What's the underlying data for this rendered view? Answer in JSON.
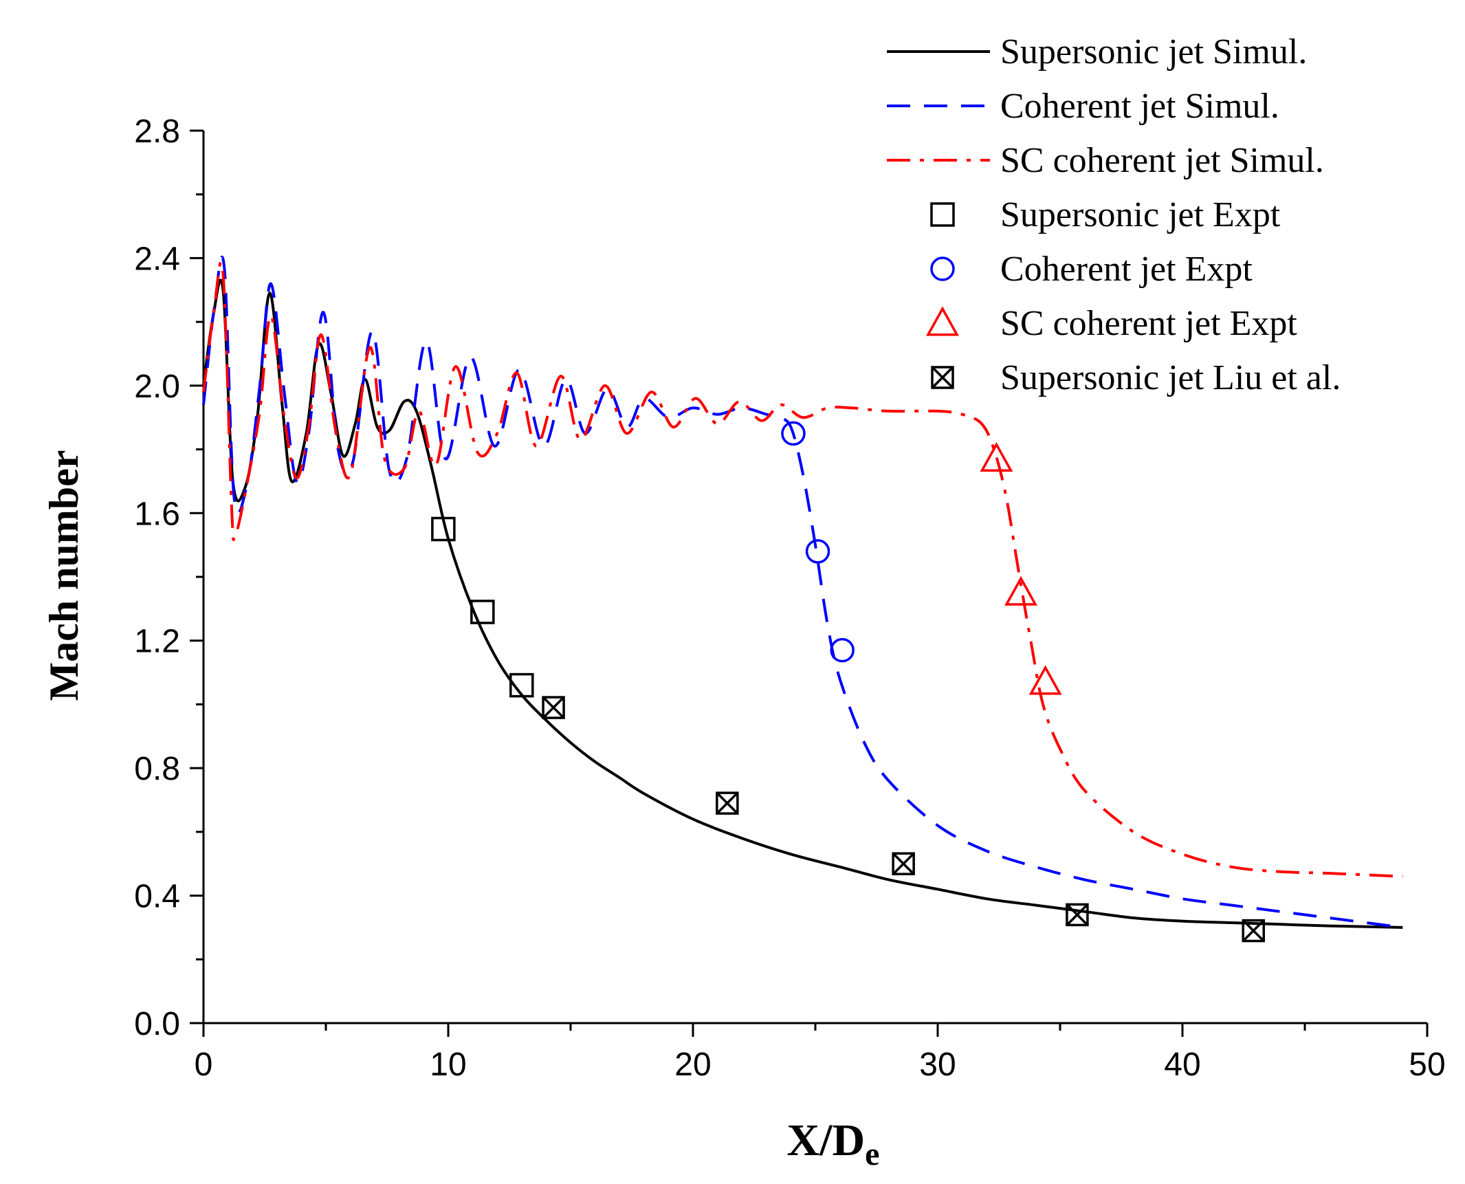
{
  "chart_data": {
    "type": "line",
    "title": "",
    "xlabel": "X/D",
    "xlabel_subscript": "e",
    "ylabel": "Mach number",
    "xlim": [
      0,
      50
    ],
    "ylim": [
      0,
      2.8
    ],
    "x_ticks": [
      0,
      10,
      20,
      30,
      40,
      50
    ],
    "y_ticks": [
      0.0,
      0.4,
      0.8,
      1.2,
      1.6,
      2.0,
      2.4,
      2.8
    ],
    "x_tick_labels": [
      "0",
      "10",
      "20",
      "30",
      "40",
      "50"
    ],
    "y_tick_labels": [
      "0.0",
      "0.4",
      "0.8",
      "1.2",
      "1.6",
      "2.0",
      "2.4",
      "2.8"
    ],
    "grid": false,
    "legend_position": "top-right",
    "series": [
      {
        "name": "Supersonic jet  Simul.",
        "style": "solid",
        "color": "#000000",
        "x": [
          0,
          0.4,
          0.8,
          1.2,
          1.7,
          2.2,
          2.7,
          3.2,
          3.6,
          4.2,
          4.7,
          5.2,
          5.7,
          6.2,
          6.6,
          7.1,
          7.6,
          8.2,
          8.7,
          9.3,
          10,
          11,
          12,
          13,
          14,
          15,
          16,
          17,
          18,
          20,
          22,
          24,
          26,
          28,
          30,
          32,
          34,
          36,
          38,
          40,
          42,
          44,
          46,
          49
        ],
        "y": [
          2.0,
          2.22,
          2.3,
          1.7,
          1.68,
          1.9,
          2.29,
          1.95,
          1.7,
          1.85,
          2.13,
          1.98,
          1.78,
          1.88,
          2.02,
          1.87,
          1.86,
          1.95,
          1.92,
          1.75,
          1.52,
          1.3,
          1.14,
          1.03,
          0.95,
          0.88,
          0.82,
          0.77,
          0.72,
          0.64,
          0.58,
          0.53,
          0.49,
          0.45,
          0.42,
          0.39,
          0.37,
          0.35,
          0.33,
          0.32,
          0.315,
          0.31,
          0.305,
          0.3
        ]
      },
      {
        "name": "Coherent jet  Simul.",
        "style": "dashed",
        "color": "#0000ff",
        "x": [
          0,
          0.45,
          0.85,
          1.25,
          1.8,
          2.3,
          2.75,
          3.3,
          3.8,
          4.3,
          4.9,
          5.5,
          6.1,
          6.9,
          7.6,
          8.3,
          9.1,
          9.9,
          10.9,
          11.9,
          12.9,
          13.9,
          14.8,
          15.6,
          16.5,
          17.3,
          18.0,
          19.0,
          20.0,
          21.0,
          22.0,
          23.0,
          23.5,
          24.0,
          24.5,
          25.0,
          25.5,
          26.0,
          27.0,
          28.0,
          30.0,
          32.0,
          34.0,
          36.0,
          38.0,
          40.0,
          42.0,
          44.0,
          46.0,
          49.0
        ],
        "y": [
          1.94,
          2.25,
          2.37,
          1.65,
          1.7,
          2.0,
          2.32,
          1.98,
          1.7,
          1.85,
          2.23,
          1.8,
          1.76,
          2.17,
          1.73,
          1.77,
          2.14,
          1.77,
          2.09,
          1.81,
          2.05,
          1.81,
          2.02,
          1.85,
          1.99,
          1.87,
          1.96,
          1.9,
          1.93,
          1.91,
          1.93,
          1.91,
          1.9,
          1.87,
          1.72,
          1.5,
          1.25,
          1.08,
          0.88,
          0.76,
          0.62,
          0.54,
          0.49,
          0.45,
          0.42,
          0.39,
          0.37,
          0.35,
          0.33,
          0.3
        ]
      },
      {
        "name": "SC coherent jet  Simul.",
        "style": "dash-dot",
        "color": "#ff0000",
        "x": [
          0,
          0.45,
          0.8,
          1.15,
          1.3,
          1.8,
          2.3,
          2.75,
          3.3,
          3.8,
          4.3,
          4.8,
          5.4,
          6.0,
          6.8,
          7.4,
          8.2,
          8.8,
          9.5,
          10.3,
          11.2,
          12.0,
          12.8,
          13.6,
          14.6,
          15.4,
          16.4,
          17.3,
          18.3,
          19.2,
          20.1,
          21.0,
          21.9,
          22.8,
          23.6,
          24.5,
          25.5,
          26.5,
          28.0,
          30.0,
          31.0,
          31.8,
          32.3,
          32.8,
          33.3,
          33.8,
          34.3,
          35.0,
          36.0,
          38.0,
          40.0,
          42.0,
          44.0,
          46.0,
          49.0
        ],
        "y": [
          1.98,
          2.25,
          2.35,
          1.62,
          1.53,
          1.7,
          1.92,
          2.22,
          1.9,
          1.71,
          1.87,
          2.16,
          1.86,
          1.72,
          2.12,
          1.77,
          1.74,
          1.92,
          1.75,
          2.06,
          1.79,
          1.85,
          2.04,
          1.81,
          2.03,
          1.83,
          2.0,
          1.85,
          1.98,
          1.87,
          1.96,
          1.88,
          1.95,
          1.89,
          1.94,
          1.9,
          1.93,
          1.93,
          1.92,
          1.92,
          1.91,
          1.88,
          1.8,
          1.65,
          1.42,
          1.2,
          1.0,
          0.86,
          0.73,
          0.6,
          0.53,
          0.49,
          0.475,
          0.47,
          0.46
        ]
      }
    ],
    "markers": [
      {
        "name": "Supersonic jet  Expt",
        "marker": "square",
        "color": "#000000",
        "x": [
          9.8,
          11.4,
          13.0
        ],
        "y": [
          1.55,
          1.29,
          1.06
        ]
      },
      {
        "name": "Coherent jet  Expt",
        "marker": "circle",
        "color": "#0000ff",
        "x": [
          24.1,
          25.1,
          26.1
        ],
        "y": [
          1.85,
          1.48,
          1.17
        ]
      },
      {
        "name": "SC coherent jet  Expt",
        "marker": "triangle",
        "color": "#ff0000",
        "x": [
          32.4,
          33.4,
          34.4
        ],
        "y": [
          1.77,
          1.35,
          1.07
        ]
      },
      {
        "name": "Supersonic jet  Liu et al.",
        "marker": "crossed-square",
        "color": "#000000",
        "x": [
          14.3,
          21.4,
          28.6,
          35.7,
          42.9
        ],
        "y": [
          0.99,
          0.69,
          0.5,
          0.34,
          0.29
        ]
      }
    ]
  }
}
